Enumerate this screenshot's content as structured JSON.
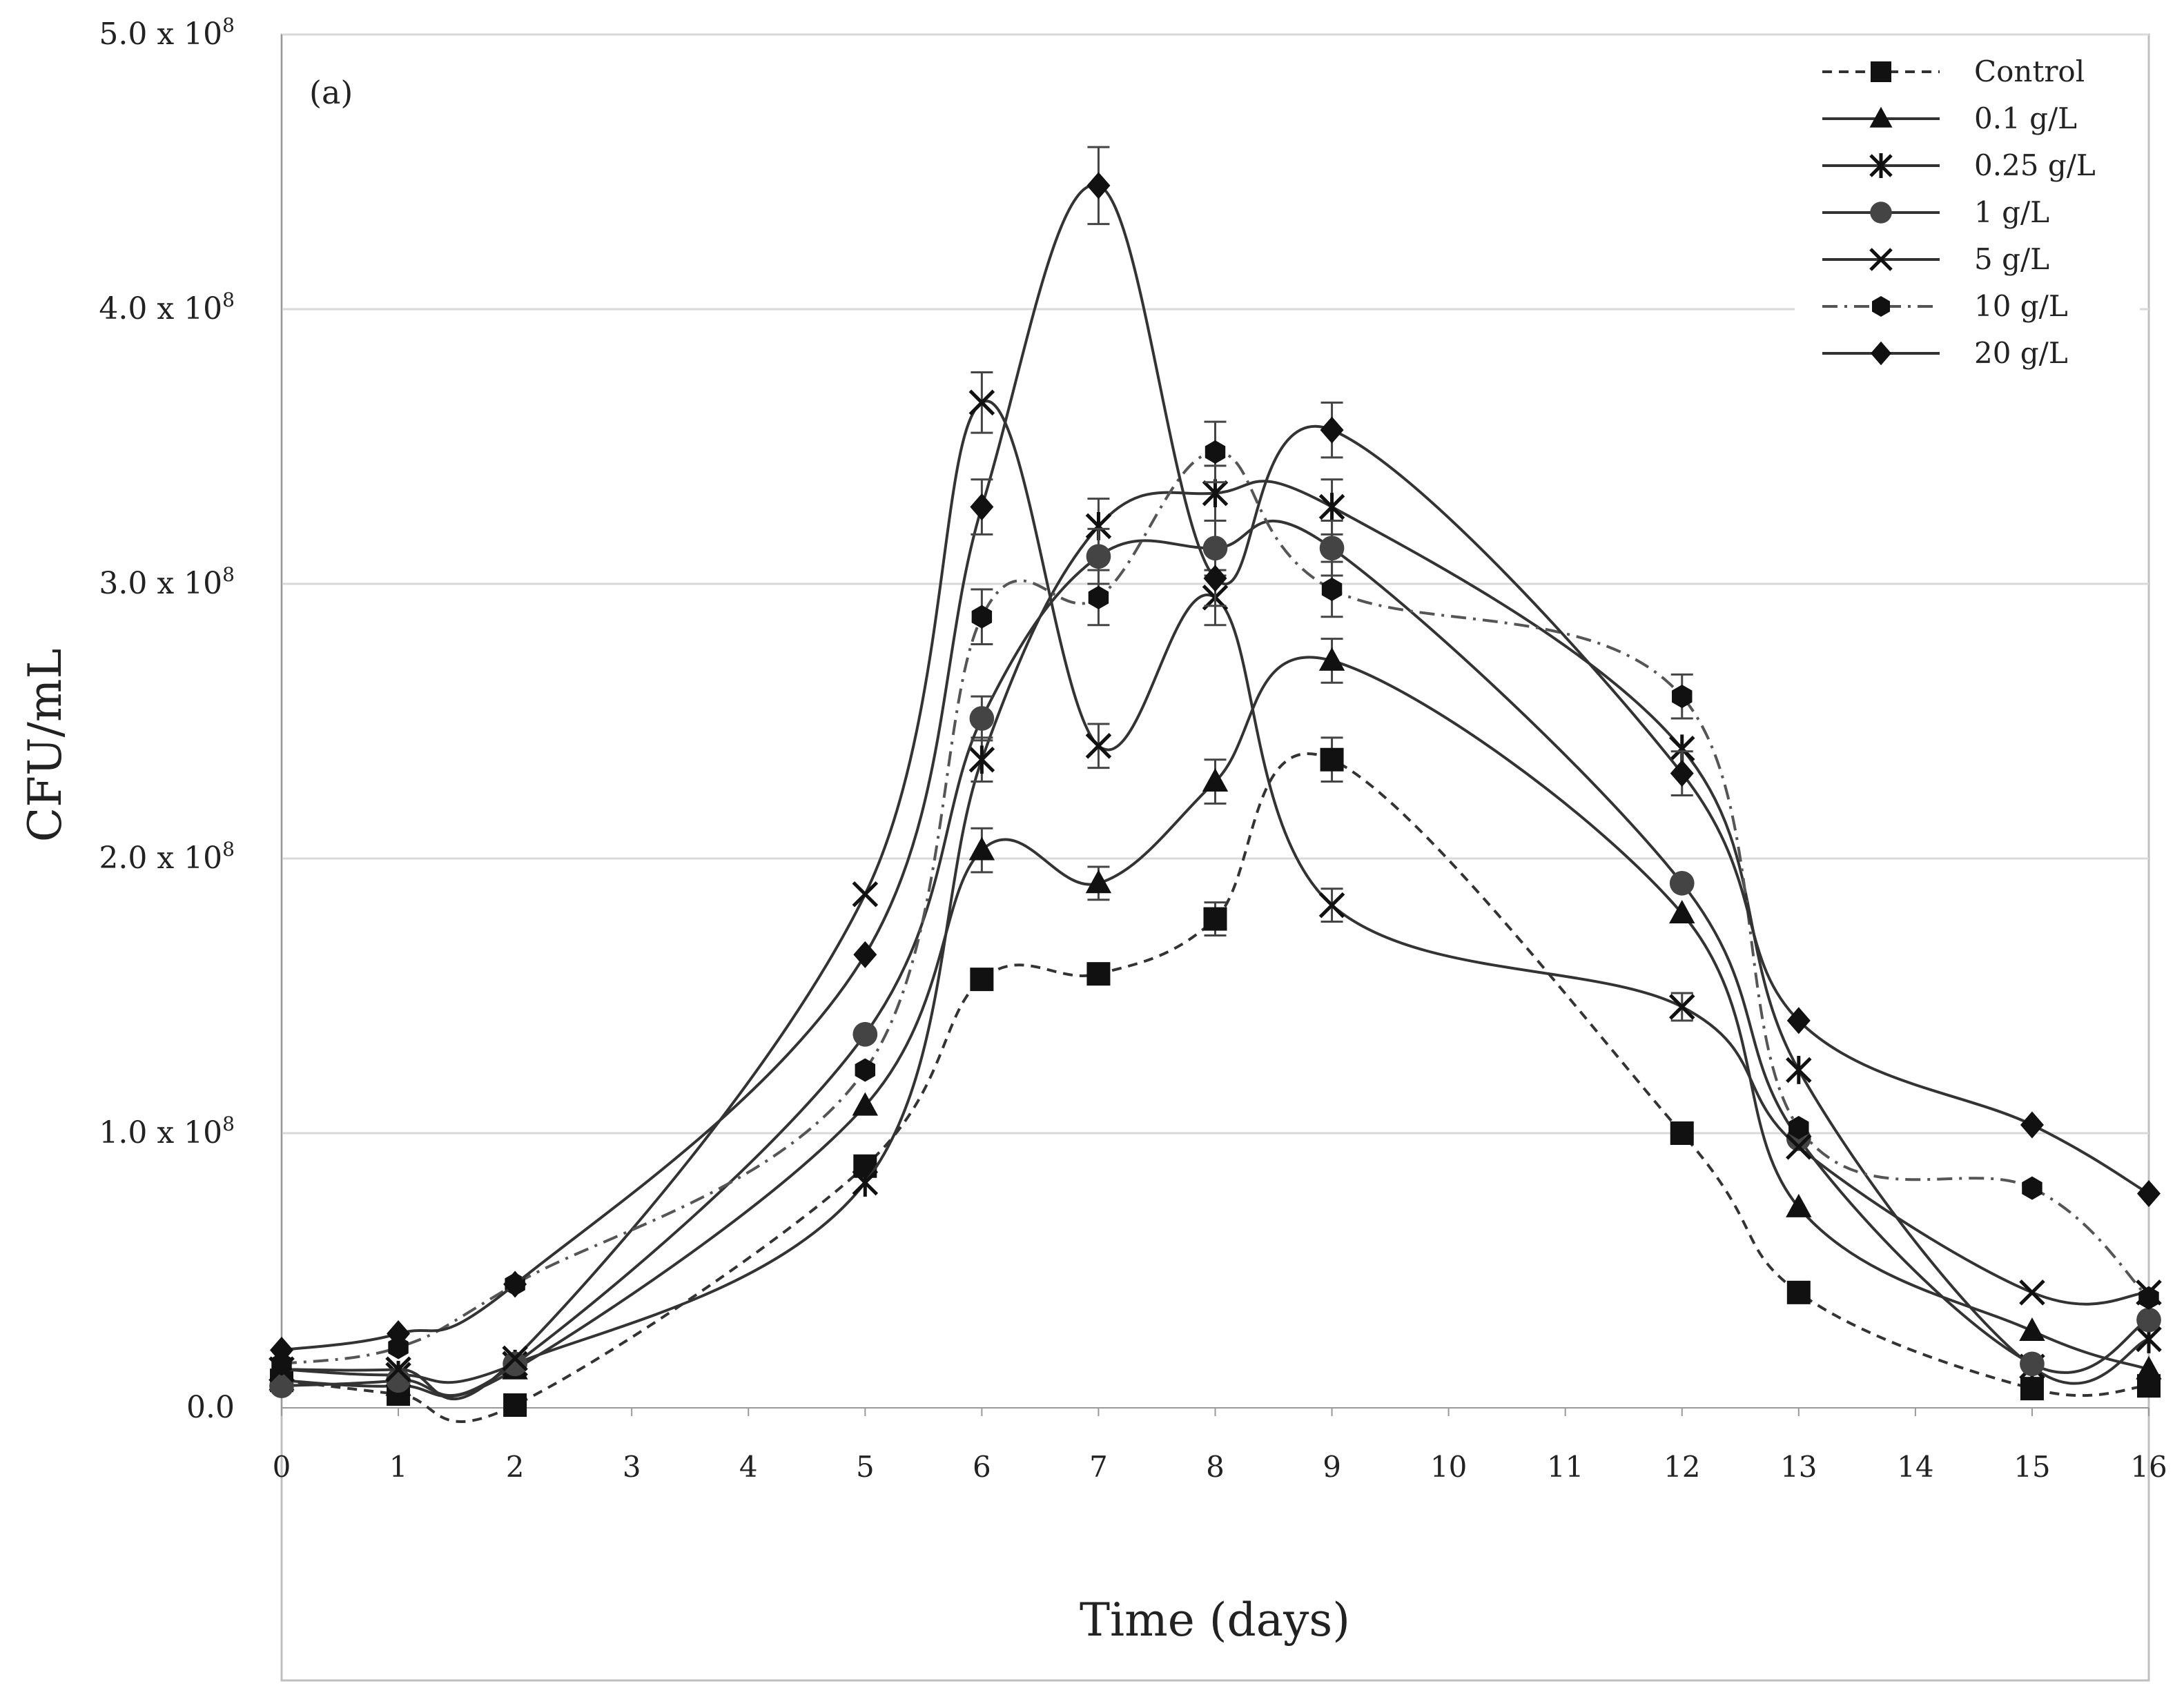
{
  "chart_data": {
    "type": "line",
    "panel_label": "(a)",
    "xlabel": "Time (days)",
    "ylabel": "CFU/mL",
    "x_ticks": [
      0,
      1,
      2,
      3,
      4,
      5,
      6,
      7,
      8,
      9,
      10,
      11,
      12,
      13,
      14,
      15,
      16
    ],
    "y_ticks": [
      {
        "value": 0,
        "label": "0.0",
        "exp": ""
      },
      {
        "value": 100000000.0,
        "label": "1.0 x 10",
        "exp": "8"
      },
      {
        "value": 200000000.0,
        "label": "2.0 x 10",
        "exp": "8"
      },
      {
        "value": 300000000.0,
        "label": "3.0 x 10",
        "exp": "8"
      },
      {
        "value": 400000000.0,
        "label": "4.0 x 10",
        "exp": "8"
      },
      {
        "value": 500000000.0,
        "label": "5.0 x 10",
        "exp": "8"
      }
    ],
    "xlim": [
      0,
      16
    ],
    "ylim": [
      0,
      500000000.0
    ],
    "grid": true,
    "legend_position": "top-right",
    "x": [
      0,
      1,
      2,
      5,
      6,
      7,
      8,
      9,
      12,
      13,
      15,
      16
    ],
    "series": [
      {
        "name": "Control",
        "marker": "square",
        "dash": "dashed",
        "values": [
          10000000.0,
          5000000.0,
          1000000.0,
          88000000.0,
          156000000.0,
          158000000.0,
          178000000.0,
          236000000.0,
          100000000.0,
          42000000.0,
          7000000.0,
          8000000.0
        ],
        "errors": [
          0,
          0,
          0,
          0,
          0,
          0,
          6000000.0,
          8000000.0,
          0,
          0,
          0,
          0
        ]
      },
      {
        "name": "0.1 g/L",
        "marker": "triangle",
        "dash": "solid",
        "values": [
          10000000.0,
          8000000.0,
          14000000.0,
          110000000.0,
          203000000.0,
          191000000.0,
          228000000.0,
          272000000.0,
          180000000.0,
          73000000.0,
          28000000.0,
          14000000.0
        ],
        "errors": [
          0,
          0,
          0,
          0,
          8000000.0,
          6000000.0,
          8000000.0,
          8000000.0,
          0,
          0,
          0,
          0
        ]
      },
      {
        "name": "0.25 g/L",
        "marker": "asterisk",
        "dash": "solid",
        "values": [
          14000000.0,
          12000000.0,
          16000000.0,
          82000000.0,
          236000000.0,
          321000000.0,
          333000000.0,
          328000000.0,
          240000000.0,
          123000000.0,
          15000000.0,
          25000000.0
        ],
        "errors": [
          0,
          0,
          0,
          0,
          8000000.0,
          10000000.0,
          10000000.0,
          10000000.0,
          0,
          0,
          0,
          0
        ]
      },
      {
        "name": "1 g/L",
        "marker": "circle",
        "dash": "solid",
        "values": [
          8000000.0,
          10000000.0,
          16000000.0,
          136000000.0,
          251000000.0,
          310000000.0,
          313000000.0,
          313000000.0,
          191000000.0,
          98000000.0,
          16000000.0,
          32000000.0
        ],
        "errors": [
          0,
          0,
          0,
          0,
          8000000.0,
          10000000.0,
          10000000.0,
          10000000.0,
          0,
          0,
          0,
          0
        ]
      },
      {
        "name": "5 g/L",
        "marker": "x",
        "dash": "solid",
        "values": [
          14000000.0,
          14000000.0,
          18000000.0,
          187000000.0,
          366000000.0,
          241000000.0,
          295000000.0,
          183000000.0,
          146000000.0,
          95000000.0,
          42000000.0,
          42000000.0
        ],
        "errors": [
          0,
          0,
          0,
          0,
          11000000.0,
          8000000.0,
          10000000.0,
          6000000.0,
          5000000.0,
          0,
          0,
          0
        ]
      },
      {
        "name": "10 g/L",
        "marker": "hexagon",
        "dash": "dashdot",
        "values": [
          16000000.0,
          22000000.0,
          45000000.0,
          123000000.0,
          288000000.0,
          295000000.0,
          348000000.0,
          298000000.0,
          259000000.0,
          102000000.0,
          80000000.0,
          40000000.0
        ],
        "errors": [
          0,
          0,
          0,
          0,
          10000000.0,
          10000000.0,
          11000000.0,
          10000000.0,
          8000000.0,
          0,
          0,
          0
        ]
      },
      {
        "name": "20 g/L",
        "marker": "diamond",
        "dash": "solid",
        "values": [
          21000000.0,
          27000000.0,
          45000000.0,
          165000000.0,
          328000000.0,
          445000000.0,
          302000000.0,
          356000000.0,
          231000000.0,
          141000000.0,
          103000000.0,
          78000000.0
        ],
        "errors": [
          0,
          0,
          0,
          0,
          10000000.0,
          14000000.0,
          10000000.0,
          10000000.0,
          8000000.0,
          0,
          0,
          0
        ]
      }
    ]
  }
}
